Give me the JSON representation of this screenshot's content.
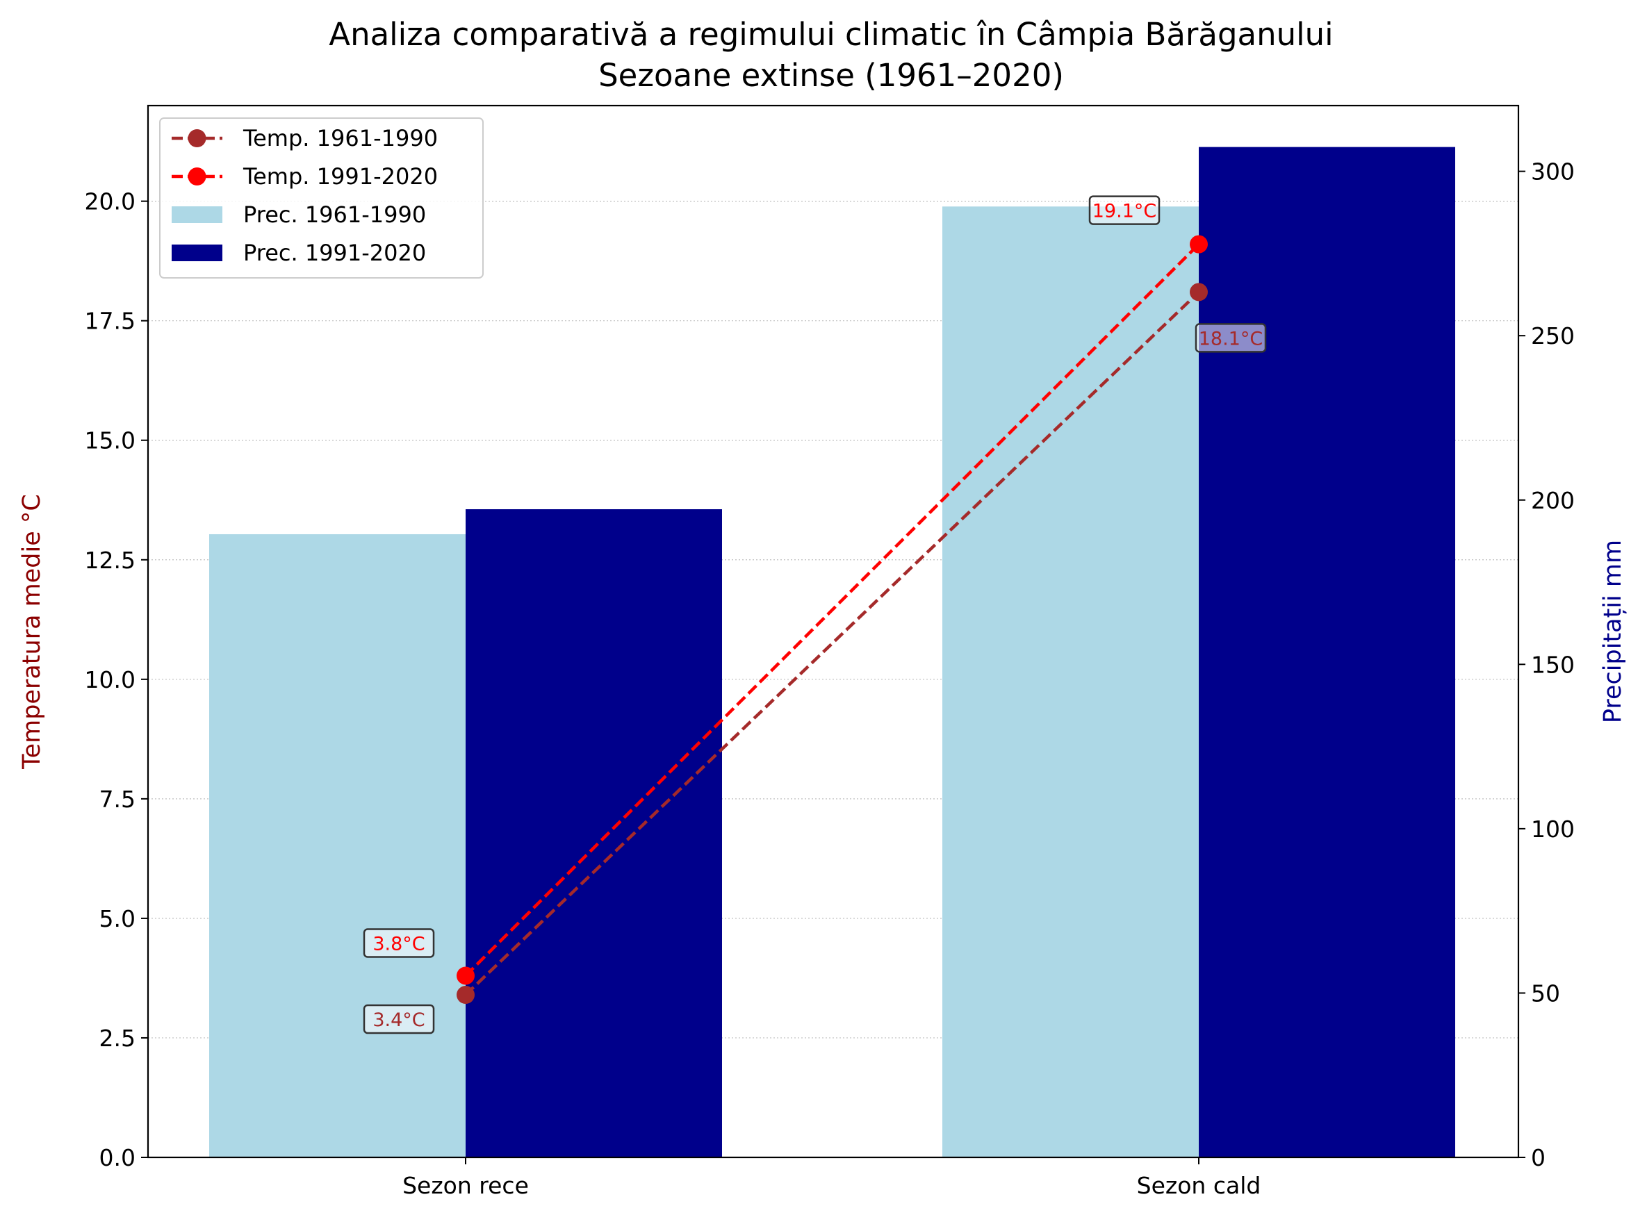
{
  "chart_data": {
    "type": "bar",
    "title": "Analiza comparativă a regimului climatic în Câmpia Bărăganului",
    "subtitle": "Sezoane extinse (1961–2020)",
    "categories": [
      "Sezon rece",
      "Sezon cald"
    ],
    "ylabel_left": "Temperatura medie °C",
    "ylabel_right": "Precipitații mm",
    "ylim_left": [
      0,
      22
    ],
    "ylim_right": [
      0,
      320
    ],
    "yticks_left": [
      "0.0",
      "2.5",
      "5.0",
      "7.5",
      "10.0",
      "12.5",
      "15.0",
      "17.5",
      "20.0"
    ],
    "yticks_right": [
      "0",
      "50",
      "100",
      "150",
      "200",
      "250",
      "300"
    ],
    "grid": "horizontal dotted",
    "legend_position": "upper-left",
    "bar_series": [
      {
        "name": "Prec. 1961-1990",
        "values": [
          189.6,
          289.3
        ],
        "color": "#add8e6"
      },
      {
        "name": "Prec. 1991-2020",
        "values": [
          197.2,
          307.4
        ],
        "color": "#00008b"
      }
    ],
    "line_series": [
      {
        "name": "Temp. 1961-1990",
        "values": [
          3.4,
          18.1
        ],
        "labels": [
          "3.4°C",
          "18.1°C"
        ],
        "color": "#a52a2a"
      },
      {
        "name": "Temp. 1991-2020",
        "values": [
          3.8,
          19.1
        ],
        "labels": [
          "3.8°C",
          "19.1°C"
        ],
        "color": "#ff0000"
      }
    ],
    "colors": {
      "left_axis_label": "#8b0000",
      "right_axis_label": "#00008b"
    }
  }
}
